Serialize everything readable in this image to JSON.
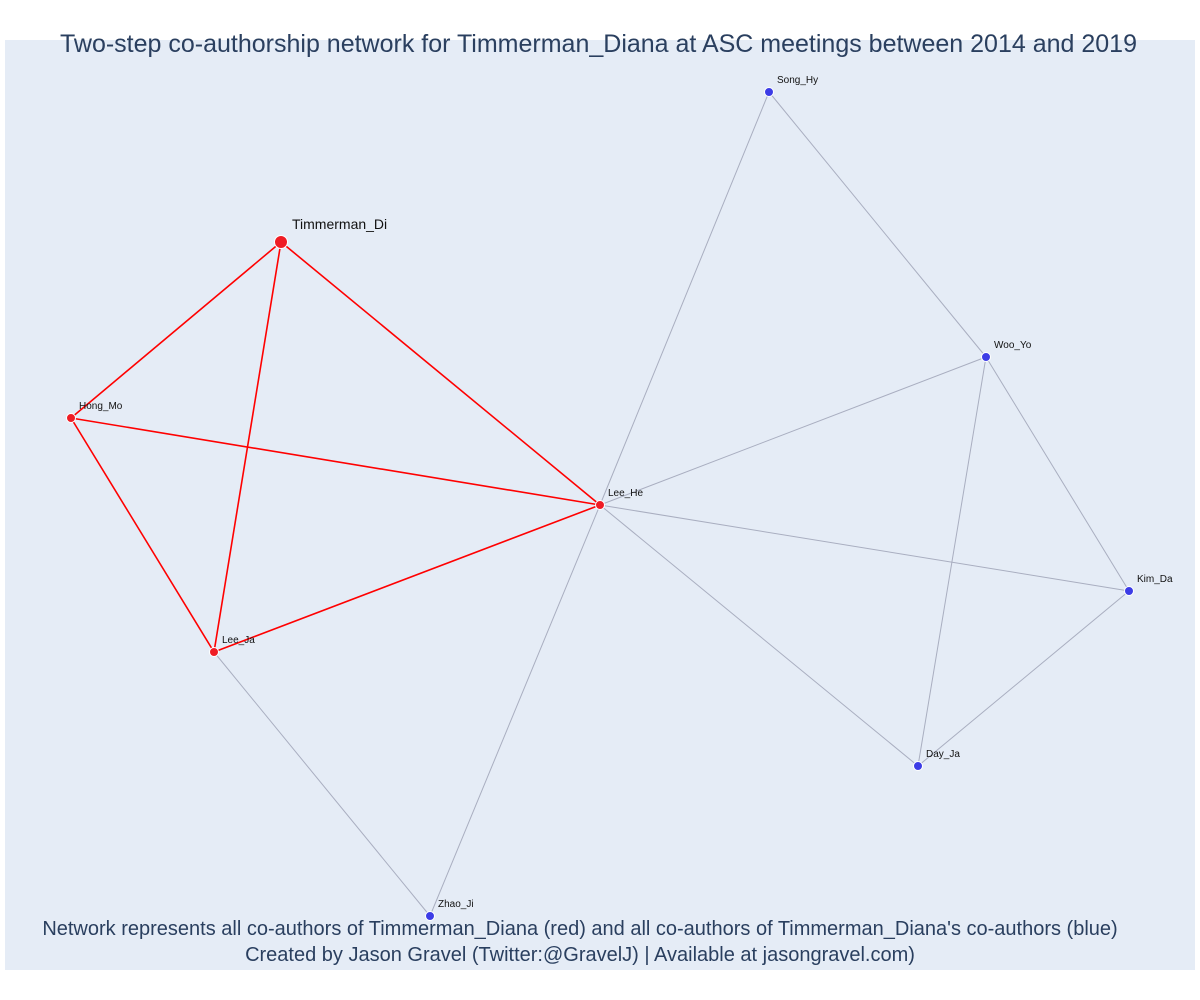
{
  "title": "Two-step co-authorship network for Timmerman_Diana at ASC meetings between 2014 and 2019",
  "caption": {
    "line1": "Network represents all co-authors of Timmerman_Diana (red) and all co-authors of Timmerman_Diana's co-authors (blue)",
    "line2": "Created by Jason Gravel (Twitter:@GravelJ) | Available at jasongravel.com)"
  },
  "colors": {
    "background": "#e5ecf6",
    "red_node": "#ef1c24",
    "blue_node": "#3c3ce6",
    "red_edge": "#ff0000",
    "grey_edge": "#a9aec0",
    "text": "#2a3f5f"
  },
  "network": {
    "focal_node": "Timmerman_Di",
    "nodes": [
      {
        "id": "Timmerman_Di",
        "group": "focal"
      },
      {
        "id": "Hong_Mo",
        "group": "coauthor"
      },
      {
        "id": "Lee_Ja",
        "group": "coauthor"
      },
      {
        "id": "Lee_He",
        "group": "coauthor"
      },
      {
        "id": "Song_Hy",
        "group": "second-step"
      },
      {
        "id": "Woo_Yo",
        "group": "second-step"
      },
      {
        "id": "Kim_Da",
        "group": "second-step"
      },
      {
        "id": "Day_Ja",
        "group": "second-step"
      },
      {
        "id": "Zhao_Ji",
        "group": "second-step"
      }
    ],
    "edges": [
      {
        "source": "Timmerman_Di",
        "target": "Hong_Mo",
        "type": "red"
      },
      {
        "source": "Timmerman_Di",
        "target": "Lee_Ja",
        "type": "red"
      },
      {
        "source": "Timmerman_Di",
        "target": "Lee_He",
        "type": "red"
      },
      {
        "source": "Hong_Mo",
        "target": "Lee_Ja",
        "type": "red"
      },
      {
        "source": "Hong_Mo",
        "target": "Lee_He",
        "type": "red"
      },
      {
        "source": "Lee_Ja",
        "target": "Lee_He",
        "type": "red"
      },
      {
        "source": "Lee_Ja",
        "target": "Zhao_Ji",
        "type": "grey"
      },
      {
        "source": "Lee_He",
        "target": "Zhao_Ji",
        "type": "grey"
      },
      {
        "source": "Lee_He",
        "target": "Song_Hy",
        "type": "grey"
      },
      {
        "source": "Lee_He",
        "target": "Woo_Yo",
        "type": "grey"
      },
      {
        "source": "Lee_He",
        "target": "Kim_Da",
        "type": "grey"
      },
      {
        "source": "Lee_He",
        "target": "Day_Ja",
        "type": "grey"
      },
      {
        "source": "Song_Hy",
        "target": "Woo_Yo",
        "type": "grey"
      },
      {
        "source": "Woo_Yo",
        "target": "Kim_Da",
        "type": "grey"
      },
      {
        "source": "Woo_Yo",
        "target": "Day_Ja",
        "type": "grey"
      },
      {
        "source": "Kim_Da",
        "target": "Day_Ja",
        "type": "grey"
      }
    ]
  }
}
